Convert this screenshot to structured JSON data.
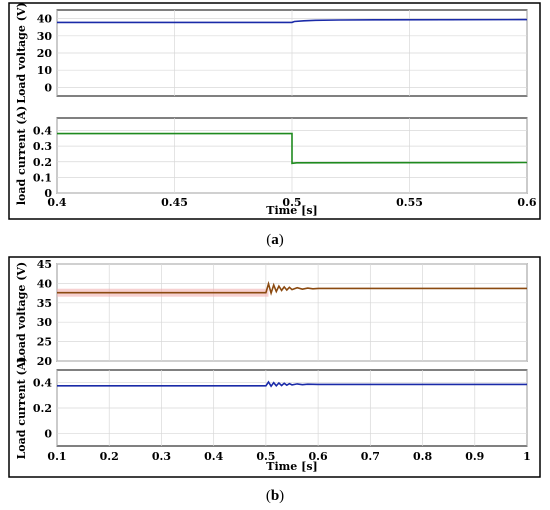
{
  "panels": [
    {
      "caption_open": "(",
      "caption_letter": "a",
      "caption_close": ")",
      "xlabel": "Time [s]",
      "xlim": [
        0.4,
        0.6
      ],
      "xticks": [
        "0.4",
        "0.45",
        "0.5",
        "0.55",
        "0.6"
      ],
      "xtick_values": [
        0.4,
        0.45,
        0.5,
        0.55,
        0.6
      ],
      "subplots": [
        {
          "ylabel": "Load voltage (V)",
          "ylim": [
            -5,
            45
          ],
          "yticks": [
            "0",
            "10",
            "20",
            "30",
            "40"
          ],
          "ytick_values": [
            0,
            10,
            20,
            30,
            40
          ],
          "color": "#1a2aa8",
          "series": [
            {
              "x": 0.4,
              "y": 37.8
            },
            {
              "x": 0.5,
              "y": 37.8
            },
            {
              "x": 0.501,
              "y": 38.3
            },
            {
              "x": 0.505,
              "y": 38.7
            },
            {
              "x": 0.51,
              "y": 39.0
            },
            {
              "x": 0.52,
              "y": 39.2
            },
            {
              "x": 0.535,
              "y": 39.3
            },
            {
              "x": 0.6,
              "y": 39.4
            }
          ]
        },
        {
          "ylabel": "load current (A)",
          "ylim": [
            0,
            0.48
          ],
          "yticks": [
            "0",
            "0.1",
            "0.2",
            "0.3",
            "0.4"
          ],
          "ytick_values": [
            0,
            0.1,
            0.2,
            0.3,
            0.4
          ],
          "color": "#1f8a1f",
          "series": [
            {
              "x": 0.4,
              "y": 0.38
            },
            {
              "x": 0.5,
              "y": 0.38
            },
            {
              "x": 0.5,
              "y": 0.19
            },
            {
              "x": 0.502,
              "y": 0.193
            },
            {
              "x": 0.6,
              "y": 0.195
            }
          ]
        }
      ]
    },
    {
      "caption_open": "(",
      "caption_letter": "b",
      "caption_close": ")",
      "xlabel": "Time [s]",
      "xlim": [
        0.1,
        1.0
      ],
      "xticks": [
        "0.1",
        "0.2",
        "0.3",
        "0.4",
        "0.5",
        "0.6",
        "0.7",
        "0.8",
        "0.9",
        "1"
      ],
      "xtick_values": [
        0.1,
        0.2,
        0.3,
        0.4,
        0.5,
        0.6,
        0.7,
        0.8,
        0.9,
        1.0
      ],
      "subplots": [
        {
          "ylabel": "Load voltage (V)",
          "ylim": [
            20,
            45
          ],
          "yticks": [
            "20",
            "25",
            "30",
            "35",
            "40",
            "45"
          ],
          "ytick_values": [
            20,
            25,
            30,
            35,
            40,
            45
          ],
          "color": "#8b4a10",
          "band_color": "#f2b0b0",
          "series": [
            {
              "x": 0.1,
              "y": 37.6
            },
            {
              "x": 0.5,
              "y": 37.6
            },
            {
              "x": 0.505,
              "y": 39.9
            },
            {
              "x": 0.51,
              "y": 37.5
            },
            {
              "x": 0.515,
              "y": 39.6
            },
            {
              "x": 0.52,
              "y": 37.9
            },
            {
              "x": 0.525,
              "y": 39.3
            },
            {
              "x": 0.53,
              "y": 38.2
            },
            {
              "x": 0.535,
              "y": 39.1
            },
            {
              "x": 0.54,
              "y": 38.3
            },
            {
              "x": 0.545,
              "y": 39.0
            },
            {
              "x": 0.55,
              "y": 38.4
            },
            {
              "x": 0.56,
              "y": 38.9
            },
            {
              "x": 0.57,
              "y": 38.5
            },
            {
              "x": 0.58,
              "y": 38.8
            },
            {
              "x": 0.59,
              "y": 38.6
            },
            {
              "x": 0.6,
              "y": 38.7
            },
            {
              "x": 1.0,
              "y": 38.7
            }
          ]
        },
        {
          "ylabel": "Load current (A)",
          "ylim": [
            -0.1,
            0.5
          ],
          "yticks": [
            "0",
            "0.2",
            "0.4"
          ],
          "ytick_values": [
            0,
            0.2,
            0.4
          ],
          "color": "#1a2aa8",
          "series": [
            {
              "x": 0.1,
              "y": 0.375
            },
            {
              "x": 0.5,
              "y": 0.375
            },
            {
              "x": 0.505,
              "y": 0.405
            },
            {
              "x": 0.51,
              "y": 0.372
            },
            {
              "x": 0.515,
              "y": 0.4
            },
            {
              "x": 0.52,
              "y": 0.375
            },
            {
              "x": 0.525,
              "y": 0.397
            },
            {
              "x": 0.53,
              "y": 0.378
            },
            {
              "x": 0.535,
              "y": 0.395
            },
            {
              "x": 0.54,
              "y": 0.38
            },
            {
              "x": 0.545,
              "y": 0.392
            },
            {
              "x": 0.55,
              "y": 0.382
            },
            {
              "x": 0.56,
              "y": 0.39
            },
            {
              "x": 0.57,
              "y": 0.384
            },
            {
              "x": 0.58,
              "y": 0.388
            },
            {
              "x": 0.6,
              "y": 0.386
            },
            {
              "x": 1.0,
              "y": 0.386
            }
          ]
        }
      ]
    }
  ],
  "chart_data": [
    {
      "type": "line",
      "title": "",
      "xlabel": "Time [s]",
      "ylabel": "Load voltage (V)",
      "xlim": [
        0.4,
        0.6
      ],
      "ylim": [
        -5,
        45
      ],
      "series": [
        {
          "x": [
            0.4,
            0.5,
            0.505,
            0.52,
            0.6
          ],
          "values": [
            37.8,
            37.8,
            38.7,
            39.2,
            39.4
          ]
        }
      ]
    },
    {
      "type": "line",
      "title": "",
      "xlabel": "Time [s]",
      "ylabel": "load current (A)",
      "xlim": [
        0.4,
        0.6
      ],
      "ylim": [
        0,
        0.48
      ],
      "series": [
        {
          "x": [
            0.4,
            0.5,
            0.5,
            0.6
          ],
          "values": [
            0.38,
            0.38,
            0.19,
            0.195
          ]
        }
      ]
    },
    {
      "type": "line",
      "title": "",
      "xlabel": "Time [s]",
      "ylabel": "Load voltage (V)",
      "xlim": [
        0.1,
        1.0
      ],
      "ylim": [
        20,
        45
      ],
      "series": [
        {
          "x": [
            0.1,
            0.5,
            0.505,
            0.6,
            1.0
          ],
          "values": [
            37.6,
            37.6,
            39.9,
            38.7,
            38.7
          ]
        }
      ]
    },
    {
      "type": "line",
      "title": "",
      "xlabel": "Time [s]",
      "ylabel": "Load current (A)",
      "xlim": [
        0.1,
        1.0
      ],
      "ylim": [
        -0.1,
        0.5
      ],
      "series": [
        {
          "x": [
            0.1,
            0.5,
            0.505,
            0.6,
            1.0
          ],
          "values": [
            0.375,
            0.375,
            0.405,
            0.386,
            0.386
          ]
        }
      ]
    }
  ]
}
